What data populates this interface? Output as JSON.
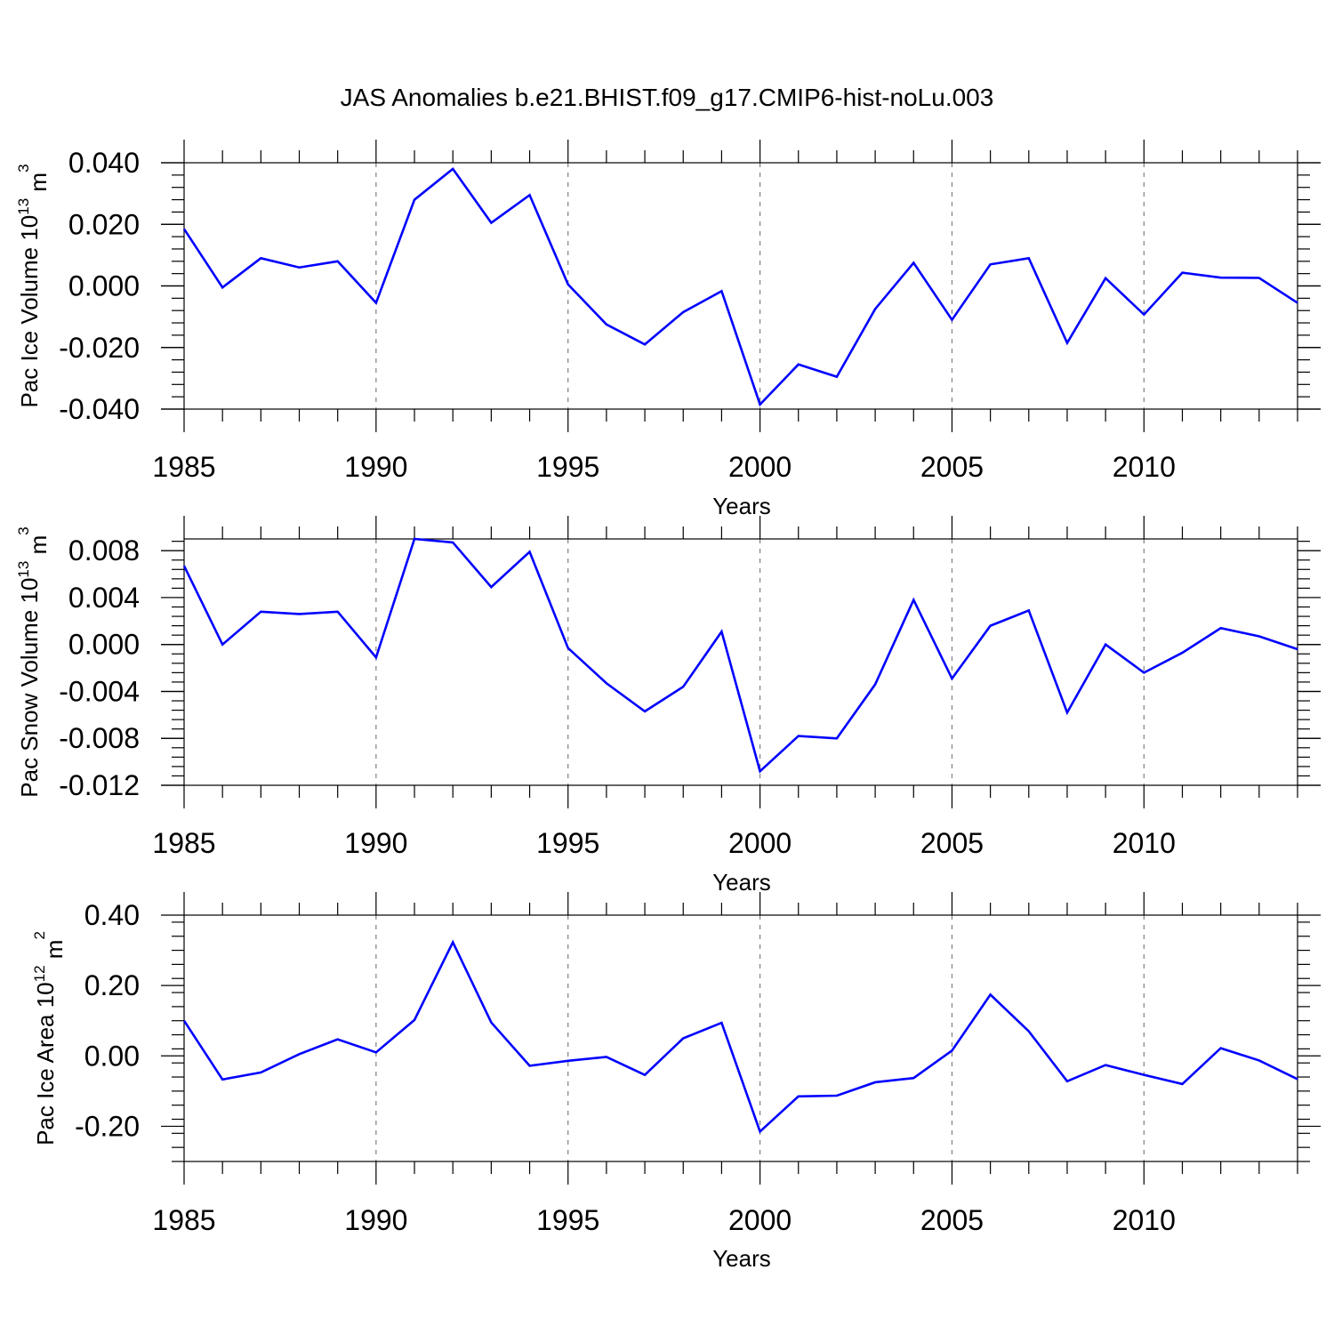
{
  "title": "JAS Anomalies b.e21.BHIST.f09_g17.CMIP6-hist-noLu.003",
  "line_color": "#0000ff",
  "chart_data": [
    {
      "type": "line",
      "ylabel": "Pac Ice Volume 10",
      "ylabel_exp": "13",
      "ylabel_unit": " m",
      "ylabel_unit_exp": "3",
      "xlabel": "Years",
      "xlim": [
        1985,
        2014
      ],
      "ylim": [
        -0.04,
        0.04
      ],
      "yticks": [
        -0.04,
        -0.02,
        0.0,
        0.02,
        0.04
      ],
      "ytick_labels": [
        "-0.040",
        "-0.020",
        "0.000",
        "0.020",
        "0.040"
      ],
      "xticks": [
        1985,
        1990,
        1995,
        2000,
        2005,
        2010
      ],
      "xtick_labels": [
        "1985",
        "1990",
        "1995",
        "2000",
        "2005",
        "2010"
      ],
      "grid_x": [
        1990,
        1995,
        2000,
        2005,
        2010
      ],
      "series": [
        {
          "name": "Pac Ice Volume",
          "x": [
            1985,
            1986,
            1987,
            1988,
            1989,
            1990,
            1991,
            1992,
            1993,
            1994,
            1995,
            1996,
            1997,
            1998,
            1999,
            2000,
            2001,
            2002,
            2003,
            2004,
            2005,
            2006,
            2007,
            2008,
            2009,
            2010,
            2011,
            2012,
            2013,
            2014
          ],
          "values": [
            0.0185,
            -0.0005,
            0.009,
            0.006,
            0.008,
            -0.0055,
            0.028,
            0.038,
            0.0205,
            0.0295,
            0.0005,
            -0.0125,
            -0.019,
            -0.0085,
            -0.0017,
            -0.0385,
            -0.0255,
            -0.0295,
            -0.0075,
            0.0075,
            -0.011,
            0.007,
            0.009,
            -0.0185,
            0.0025,
            -0.0093,
            0.0043,
            0.0027,
            0.0026,
            -0.0055
          ]
        }
      ]
    },
    {
      "type": "line",
      "ylabel": "Pac Snow Volume 10",
      "ylabel_exp": "13",
      "ylabel_unit": " m",
      "ylabel_unit_exp": "3",
      "xlabel": "Years",
      "xlim": [
        1985,
        2014
      ],
      "ylim": [
        -0.012,
        0.009
      ],
      "yticks": [
        -0.012,
        -0.008,
        -0.004,
        0.0,
        0.004,
        0.008
      ],
      "ytick_labels": [
        "-0.012",
        "-0.008",
        "-0.004",
        "0.000",
        "0.004",
        "0.008"
      ],
      "xticks": [
        1985,
        1990,
        1995,
        2000,
        2005,
        2010
      ],
      "xtick_labels": [
        "1985",
        "1990",
        "1995",
        "2000",
        "2005",
        "2010"
      ],
      "grid_x": [
        1990,
        1995,
        2000,
        2005,
        2010
      ],
      "series": [
        {
          "name": "Pac Snow Volume",
          "x": [
            1985,
            1986,
            1987,
            1988,
            1989,
            1990,
            1991,
            1992,
            1993,
            1994,
            1995,
            1996,
            1997,
            1998,
            1999,
            2000,
            2001,
            2002,
            2003,
            2004,
            2005,
            2006,
            2007,
            2008,
            2009,
            2010,
            2011,
            2012,
            2013,
            2014
          ],
          "values": [
            0.0067,
            0.0,
            0.0028,
            0.0026,
            0.0028,
            -0.0011,
            0.009,
            0.0087,
            0.0049,
            0.0079,
            -0.0003,
            -0.0033,
            -0.0057,
            -0.0036,
            0.0011,
            -0.0108,
            -0.0078,
            -0.008,
            -0.0034,
            0.0038,
            -0.0029,
            0.0016,
            0.0029,
            -0.0058,
            0.0,
            -0.0024,
            -0.0007,
            0.0014,
            0.0007,
            -0.0004
          ]
        }
      ]
    },
    {
      "type": "line",
      "ylabel": "Pac Ice Area 10",
      "ylabel_exp": "12",
      "ylabel_unit": " m",
      "ylabel_unit_exp": "2",
      "xlabel": "Years",
      "xlim": [
        1985,
        2014
      ],
      "ylim": [
        -0.3,
        0.4
      ],
      "yticks": [
        -0.2,
        0.0,
        0.2,
        0.4
      ],
      "ytick_labels": [
        "-0.20",
        "0.00",
        "0.20",
        "0.40"
      ],
      "xticks": [
        1985,
        1990,
        1995,
        2000,
        2005,
        2010
      ],
      "xtick_labels": [
        "1985",
        "1990",
        "1995",
        "2000",
        "2005",
        "2010"
      ],
      "grid_x": [
        1990,
        1995,
        2000,
        2005,
        2010
      ],
      "series": [
        {
          "name": "Pac Ice Area",
          "x": [
            1985,
            1986,
            1987,
            1988,
            1989,
            1990,
            1991,
            1992,
            1993,
            1994,
            1995,
            1996,
            1997,
            1998,
            1999,
            2000,
            2001,
            2002,
            2003,
            2004,
            2005,
            2006,
            2007,
            2008,
            2009,
            2010,
            2011,
            2012,
            2013,
            2014
          ],
          "values": [
            0.1,
            -0.067,
            -0.047,
            0.005,
            0.047,
            0.01,
            0.102,
            0.323,
            0.095,
            -0.028,
            -0.014,
            -0.003,
            -0.054,
            0.05,
            0.094,
            -0.215,
            -0.115,
            -0.113,
            -0.075,
            -0.063,
            0.015,
            0.174,
            0.07,
            -0.072,
            -0.026,
            -0.054,
            -0.08,
            0.022,
            -0.013,
            -0.066
          ]
        }
      ]
    }
  ]
}
